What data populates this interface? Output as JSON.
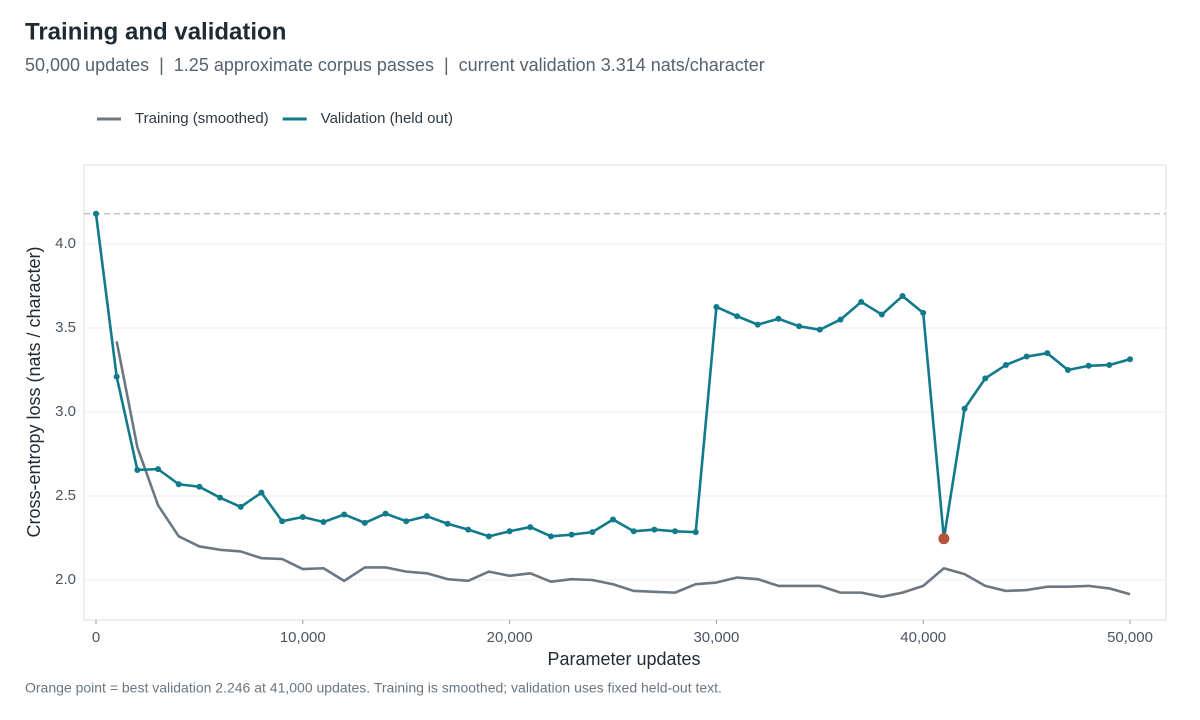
{
  "chart_data": {
    "type": "line",
    "title": "Training and validation",
    "subtitle": "50,000 updates  |  1.25 approximate corpus passes  |  current validation 3.314 nats/character",
    "x_label": "Parameter updates",
    "y_label": "Cross-entropy loss (nats / character)",
    "caption": "Orange point = best validation 2.246 at 41,000 updates. Training is smoothed; validation uses fixed held-out text.",
    "x": [
      0,
      1000,
      2000,
      3000,
      4000,
      5000,
      6000,
      7000,
      8000,
      9000,
      10000,
      11000,
      12000,
      13000,
      14000,
      15000,
      16000,
      17000,
      18000,
      19000,
      20000,
      21000,
      22000,
      23000,
      24000,
      25000,
      26000,
      27000,
      28000,
      29000,
      30000,
      31000,
      32000,
      33000,
      34000,
      35000,
      36000,
      37000,
      38000,
      39000,
      40000,
      41000,
      42000,
      43000,
      44000,
      45000,
      46000,
      47000,
      48000,
      49000,
      50000
    ],
    "series": [
      {
        "name": "Training (smoothed)",
        "color": "#6b7884",
        "markers": false,
        "values": [
          null,
          3.42,
          2.79,
          2.445,
          2.26,
          2.2,
          2.18,
          2.17,
          2.13,
          2.125,
          2.065,
          2.07,
          1.995,
          2.075,
          2.075,
          2.05,
          2.04,
          2.005,
          1.995,
          2.05,
          2.025,
          2.04,
          1.99,
          2.005,
          2.0,
          1.975,
          1.935,
          1.93,
          1.925,
          1.975,
          1.985,
          2.015,
          2.005,
          1.965,
          1.965,
          1.965,
          1.925,
          1.925,
          1.9,
          1.925,
          1.965,
          2.07,
          2.035,
          1.965,
          1.935,
          1.94,
          1.96,
          1.96,
          1.965,
          1.95,
          1.915
        ]
      },
      {
        "name": "Validation (held out)",
        "color": "#117a8b",
        "markers": true,
        "values": [
          4.18,
          3.21,
          2.655,
          2.66,
          2.57,
          2.555,
          2.49,
          2.435,
          2.52,
          2.35,
          2.375,
          2.345,
          2.39,
          2.34,
          2.395,
          2.35,
          2.38,
          2.335,
          2.3,
          2.26,
          2.29,
          2.315,
          2.26,
          2.27,
          2.285,
          2.36,
          2.29,
          2.3,
          2.29,
          2.285,
          3.625,
          3.57,
          3.52,
          3.555,
          3.51,
          3.49,
          3.55,
          3.655,
          3.58,
          3.69,
          3.59,
          2.246,
          3.02,
          3.2,
          3.28,
          3.33,
          3.35,
          3.25,
          3.275,
          3.28,
          3.314
        ]
      }
    ],
    "highlight": {
      "series": 1,
      "index": 41,
      "color": "#b5533c"
    },
    "reference_line": 4.18,
    "xlim": [
      -580,
      51740
    ],
    "ylim": [
      1.762,
      4.47
    ],
    "xticks": [
      {
        "value": 0,
        "label": "0"
      },
      {
        "value": 10000,
        "label": "10,000"
      },
      {
        "value": 20000,
        "label": "20,000"
      },
      {
        "value": 30000,
        "label": "30,000"
      },
      {
        "value": 40000,
        "label": "40,000"
      },
      {
        "value": 50000,
        "label": "50,000"
      }
    ],
    "yticks": [
      {
        "value": 2,
        "label": "2.0"
      },
      2.5,
      {
        "value": 3,
        "label": "3.0"
      },
      3.5,
      {
        "value": 4,
        "label": "4.0"
      }
    ],
    "grid": true,
    "legend": "top-left"
  }
}
